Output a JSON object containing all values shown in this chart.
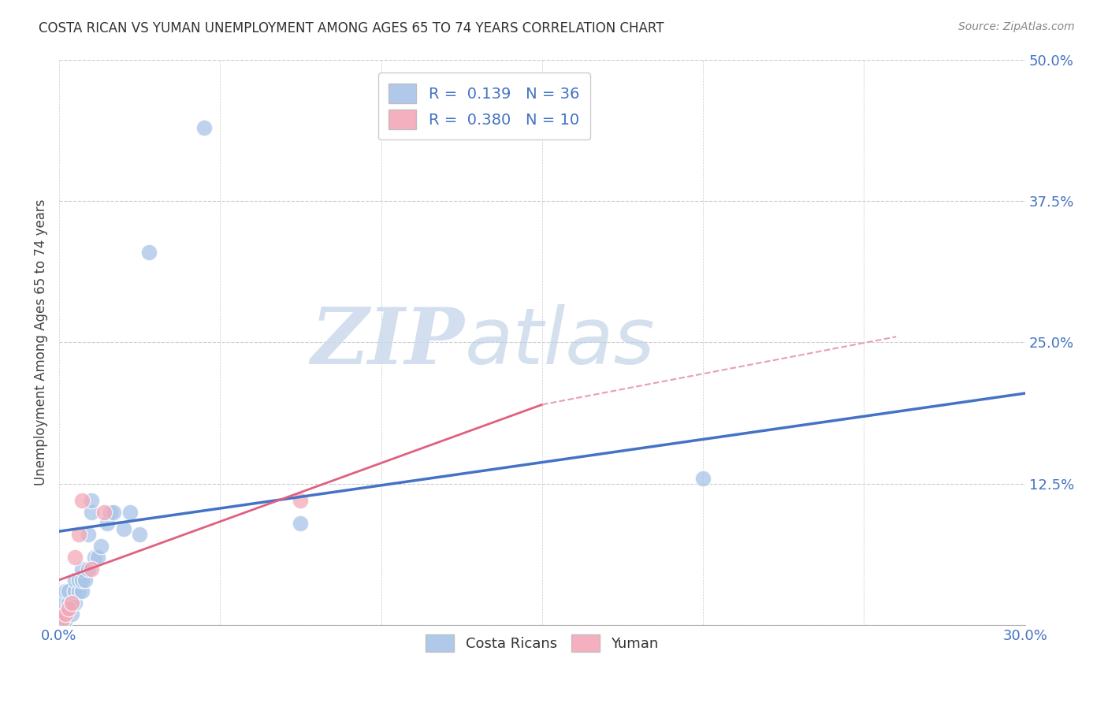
{
  "title": "COSTA RICAN VS YUMAN UNEMPLOYMENT AMONG AGES 65 TO 74 YEARS CORRELATION CHART",
  "source": "Source: ZipAtlas.com",
  "ylabel": "Unemployment Among Ages 65 to 74 years",
  "xlim": [
    0.0,
    0.3
  ],
  "ylim": [
    0.0,
    0.5
  ],
  "xticks": [
    0.0,
    0.05,
    0.1,
    0.15,
    0.2,
    0.25,
    0.3
  ],
  "xtick_labels": [
    "0.0%",
    "",
    "",
    "",
    "",
    "",
    "30.0%"
  ],
  "yticks": [
    0.0,
    0.125,
    0.25,
    0.375,
    0.5
  ],
  "ytick_labels": [
    "",
    "12.5%",
    "25.0%",
    "37.5%",
    "50.0%"
  ],
  "legend1_label": "R =  0.139   N = 36",
  "legend2_label": "R =  0.380   N = 10",
  "background_color": "#ffffff",
  "grid_color": "#cccccc",
  "watermark_zip": "ZIP",
  "watermark_atlas": "atlas",
  "costa_rican_color": "#a8c4e8",
  "yuman_color": "#f4a8b8",
  "trend_cr_color": "#4472c4",
  "trend_yuman_color": "#e06080",
  "trend_yuman_dash_color": "#e8a0b0",
  "costa_ricans_x": [
    0.001,
    0.001,
    0.001,
    0.002,
    0.002,
    0.002,
    0.003,
    0.003,
    0.004,
    0.004,
    0.005,
    0.005,
    0.005,
    0.006,
    0.006,
    0.007,
    0.007,
    0.007,
    0.008,
    0.009,
    0.009,
    0.01,
    0.01,
    0.011,
    0.012,
    0.013,
    0.015,
    0.016,
    0.017,
    0.02,
    0.022,
    0.025,
    0.028,
    0.045,
    0.075,
    0.2
  ],
  "costa_ricans_y": [
    0.005,
    0.01,
    0.02,
    0.005,
    0.01,
    0.03,
    0.02,
    0.03,
    0.01,
    0.02,
    0.02,
    0.03,
    0.04,
    0.03,
    0.04,
    0.03,
    0.04,
    0.05,
    0.04,
    0.05,
    0.08,
    0.1,
    0.11,
    0.06,
    0.06,
    0.07,
    0.09,
    0.1,
    0.1,
    0.085,
    0.1,
    0.08,
    0.33,
    0.44,
    0.09,
    0.13
  ],
  "yuman_x": [
    0.001,
    0.002,
    0.003,
    0.004,
    0.005,
    0.006,
    0.007,
    0.01,
    0.014,
    0.075
  ],
  "yuman_y": [
    0.005,
    0.01,
    0.015,
    0.02,
    0.06,
    0.08,
    0.11,
    0.05,
    0.1,
    0.11
  ],
  "trend_cr_x0": 0.0,
  "trend_cr_x1": 0.3,
  "trend_cr_y0": 0.083,
  "trend_cr_y1": 0.205,
  "trend_yuman_solid_x0": 0.0,
  "trend_yuman_solid_x1": 0.15,
  "trend_yuman_solid_y0": 0.04,
  "trend_yuman_solid_y1": 0.195,
  "trend_yuman_dash_x0": 0.15,
  "trend_yuman_dash_x1": 0.26,
  "trend_yuman_dash_y0": 0.195,
  "trend_yuman_dash_y1": 0.255
}
